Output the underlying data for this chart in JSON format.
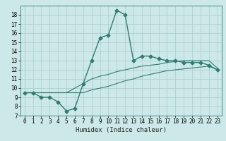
{
  "xlabel": "Humidex (Indice chaleur)",
  "background_color": "#cce8e8",
  "grid_color": "#aacccc",
  "line_color": "#2e7d72",
  "xlim": [
    -0.5,
    23.5
  ],
  "ylim": [
    7,
    19
  ],
  "yticks": [
    7,
    8,
    9,
    10,
    11,
    12,
    13,
    14,
    15,
    16,
    17,
    18
  ],
  "xticks": [
    0,
    1,
    2,
    3,
    4,
    5,
    6,
    7,
    8,
    9,
    10,
    11,
    12,
    13,
    14,
    15,
    16,
    17,
    18,
    19,
    20,
    21,
    22,
    23
  ],
  "series_main_x": [
    0,
    1,
    2,
    3,
    4,
    5,
    6,
    7,
    8,
    9,
    10,
    11,
    12,
    13,
    14,
    15,
    16,
    17,
    18,
    19,
    20,
    21,
    22,
    23
  ],
  "series_main_y": [
    9.5,
    9.5,
    9.0,
    9.0,
    8.5,
    7.5,
    7.8,
    10.5,
    13.0,
    15.5,
    15.8,
    18.5,
    18.0,
    13.0,
    13.5,
    13.5,
    13.2,
    13.0,
    13.0,
    12.8,
    12.8,
    12.8,
    12.5,
    12.0
  ],
  "series_upper_x": [
    0,
    1,
    2,
    3,
    4,
    5,
    6,
    7,
    8,
    9,
    10,
    11,
    12,
    13,
    14,
    15,
    16,
    17,
    18,
    19,
    20,
    21,
    22,
    23
  ],
  "series_upper_y": [
    9.5,
    9.5,
    9.5,
    9.5,
    9.5,
    9.5,
    10.0,
    10.5,
    11.0,
    11.3,
    11.5,
    11.8,
    12.0,
    12.2,
    12.4,
    12.5,
    12.6,
    12.8,
    12.9,
    13.0,
    13.0,
    13.0,
    13.0,
    12.2
  ],
  "series_lower_x": [
    0,
    1,
    2,
    3,
    4,
    5,
    6,
    7,
    8,
    9,
    10,
    11,
    12,
    13,
    14,
    15,
    16,
    17,
    18,
    19,
    20,
    21,
    22,
    23
  ],
  "series_lower_y": [
    9.5,
    9.5,
    9.5,
    9.5,
    9.5,
    9.5,
    9.5,
    9.5,
    9.8,
    10.0,
    10.2,
    10.5,
    10.8,
    11.0,
    11.3,
    11.5,
    11.7,
    11.9,
    12.0,
    12.1,
    12.2,
    12.3,
    12.4,
    12.0
  ],
  "xlabel_fontsize": 6.5,
  "tick_fontsize": 5.5,
  "linewidth_main": 1.0,
  "linewidth_sub": 0.8,
  "marker_size": 2.5
}
